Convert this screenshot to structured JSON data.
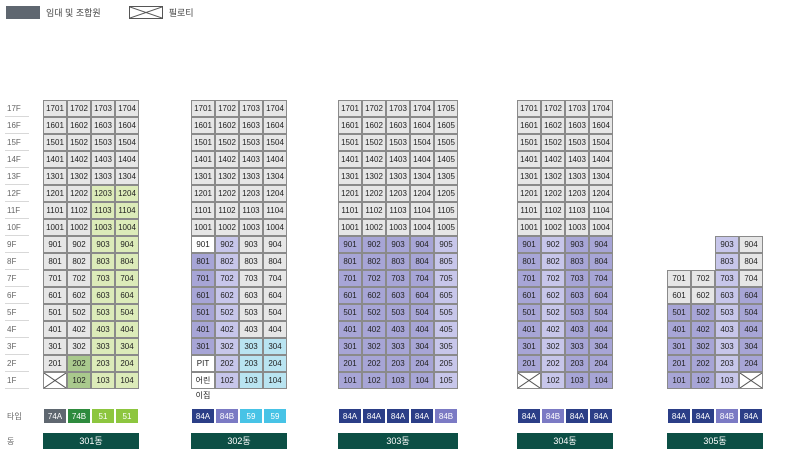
{
  "legend": {
    "dark_label": "임대 및 조합원",
    "x_label": "필로티"
  },
  "floors": [
    "17F",
    "16F",
    "15F",
    "14F",
    "13F",
    "12F",
    "11F",
    "10F",
    "9F",
    "8F",
    "7F",
    "6F",
    "5F",
    "4F",
    "3F",
    "2F",
    "1F"
  ],
  "row_labels": {
    "type": "타입",
    "building": "동"
  },
  "colors": {
    "dark_gray": "#5f6770",
    "dark_green": "#2e8b3e",
    "lime": "#8dc63f",
    "blue_dark": "#2b3e87",
    "purple": "#7b7ac4",
    "cyan": "#47c3e6",
    "building_bar": "#0c4f45"
  },
  "buildings": [
    {
      "name": "301동",
      "top_floor": 17,
      "units": [
        [
          "1701",
          "1702",
          "1703",
          "1704"
        ],
        [
          "1601",
          "1602",
          "1603",
          "1604"
        ],
        [
          "1501",
          "1502",
          "1503",
          "1504"
        ],
        [
          "1401",
          "1402",
          "1403",
          "1404"
        ],
        [
          "1301",
          "1302",
          "1303",
          "1304"
        ],
        [
          "1201",
          "1202",
          "1203",
          "1204"
        ],
        [
          "1101",
          "1102",
          "1103",
          "1104"
        ],
        [
          "1001",
          "1002",
          "1003",
          "1004"
        ],
        [
          "901",
          "902",
          "903",
          "904"
        ],
        [
          "801",
          "802",
          "803",
          "804"
        ],
        [
          "701",
          "702",
          "703",
          "704"
        ],
        [
          "601",
          "602",
          "603",
          "604"
        ],
        [
          "501",
          "502",
          "503",
          "504"
        ],
        [
          "401",
          "402",
          "403",
          "404"
        ],
        [
          "301",
          "302",
          "303",
          "304"
        ],
        [
          "201",
          "202",
          "203",
          "204"
        ],
        [
          "X",
          "102",
          "103",
          "104"
        ]
      ],
      "types": [
        {
          "label": "74A",
          "color": "#5f6770"
        },
        {
          "label": "74B",
          "color": "#2e8b3e"
        },
        {
          "label": "51",
          "color": "#8dc63f"
        },
        {
          "label": "51",
          "color": "#8dc63f"
        }
      ]
    },
    {
      "name": "302동",
      "top_floor": 17,
      "units": [
        [
          "1701",
          "1702",
          "1703",
          "1704"
        ],
        [
          "1601",
          "1602",
          "1603",
          "1604"
        ],
        [
          "1501",
          "1502",
          "1503",
          "1504"
        ],
        [
          "1401",
          "1402",
          "1403",
          "1404"
        ],
        [
          "1301",
          "1302",
          "1303",
          "1304"
        ],
        [
          "1201",
          "1202",
          "1203",
          "1204"
        ],
        [
          "1101",
          "1102",
          "1103",
          "1104"
        ],
        [
          "1001",
          "1002",
          "1003",
          "1004"
        ],
        [
          "901",
          "902",
          "903",
          "904"
        ],
        [
          "801",
          "802",
          "803",
          "804"
        ],
        [
          "701",
          "702",
          "703",
          "704"
        ],
        [
          "601",
          "602",
          "603",
          "604"
        ],
        [
          "501",
          "502",
          "503",
          "504"
        ],
        [
          "401",
          "402",
          "403",
          "404"
        ],
        [
          "301",
          "302",
          "303",
          "304"
        ],
        [
          "PIT",
          "202",
          "203",
          "204"
        ],
        [
          "어린이집",
          "102",
          "103",
          "104"
        ]
      ],
      "types": [
        {
          "label": "84A",
          "color": "#2b3e87"
        },
        {
          "label": "84B",
          "color": "#7b7ac4"
        },
        {
          "label": "59",
          "color": "#47c3e6"
        },
        {
          "label": "59",
          "color": "#47c3e6"
        }
      ]
    },
    {
      "name": "303동",
      "top_floor": 17,
      "units": [
        [
          "1701",
          "1702",
          "1703",
          "1704",
          "1705"
        ],
        [
          "1601",
          "1602",
          "1603",
          "1604",
          "1605"
        ],
        [
          "1501",
          "1502",
          "1503",
          "1504",
          "1505"
        ],
        [
          "1401",
          "1402",
          "1403",
          "1404",
          "1405"
        ],
        [
          "1301",
          "1302",
          "1303",
          "1304",
          "1305"
        ],
        [
          "1201",
          "1202",
          "1203",
          "1204",
          "1205"
        ],
        [
          "1101",
          "1102",
          "1103",
          "1104",
          "1105"
        ],
        [
          "1001",
          "1002",
          "1003",
          "1004",
          "1005"
        ],
        [
          "901",
          "902",
          "903",
          "904",
          "905"
        ],
        [
          "801",
          "802",
          "803",
          "804",
          "805"
        ],
        [
          "701",
          "702",
          "703",
          "704",
          "705"
        ],
        [
          "601",
          "602",
          "603",
          "604",
          "605"
        ],
        [
          "501",
          "502",
          "503",
          "504",
          "505"
        ],
        [
          "401",
          "402",
          "403",
          "404",
          "405"
        ],
        [
          "301",
          "302",
          "303",
          "304",
          "305"
        ],
        [
          "201",
          "202",
          "203",
          "204",
          "205"
        ],
        [
          "101",
          "102",
          "103",
          "104",
          "105"
        ]
      ],
      "types": [
        {
          "label": "84A",
          "color": "#2b3e87"
        },
        {
          "label": "84A",
          "color": "#2b3e87"
        },
        {
          "label": "84A",
          "color": "#2b3e87"
        },
        {
          "label": "84A",
          "color": "#2b3e87"
        },
        {
          "label": "84B",
          "color": "#7b7ac4"
        }
      ]
    },
    {
      "name": "304동",
      "top_floor": 17,
      "units": [
        [
          "1701",
          "1702",
          "1703",
          "1704"
        ],
        [
          "1601",
          "1602",
          "1603",
          "1604"
        ],
        [
          "1501",
          "1502",
          "1503",
          "1504"
        ],
        [
          "1401",
          "1402",
          "1403",
          "1404"
        ],
        [
          "1301",
          "1302",
          "1303",
          "1304"
        ],
        [
          "1201",
          "1202",
          "1203",
          "1204"
        ],
        [
          "1101",
          "1102",
          "1103",
          "1104"
        ],
        [
          "1001",
          "1002",
          "1003",
          "1004"
        ],
        [
          "901",
          "902",
          "903",
          "904"
        ],
        [
          "801",
          "802",
          "803",
          "804"
        ],
        [
          "701",
          "702",
          "703",
          "704"
        ],
        [
          "601",
          "602",
          "603",
          "604"
        ],
        [
          "501",
          "502",
          "503",
          "504"
        ],
        [
          "401",
          "402",
          "403",
          "404"
        ],
        [
          "301",
          "302",
          "303",
          "304"
        ],
        [
          "201",
          "202",
          "203",
          "204"
        ],
        [
          "X",
          "102",
          "103",
          "104"
        ]
      ],
      "types": [
        {
          "label": "84A",
          "color": "#2b3e87"
        },
        {
          "label": "84B",
          "color": "#7b7ac4"
        },
        {
          "label": "84A",
          "color": "#2b3e87"
        },
        {
          "label": "84A",
          "color": "#2b3e87"
        }
      ]
    },
    {
      "name": "305동",
      "top_floor": 9,
      "units": [
        [
          "",
          "",
          "903",
          "904"
        ],
        [
          "",
          "",
          "803",
          "804"
        ],
        [
          "701",
          "702",
          "703",
          "704"
        ],
        [
          "601",
          "602",
          "603",
          "604"
        ],
        [
          "501",
          "502",
          "503",
          "504"
        ],
        [
          "401",
          "402",
          "403",
          "404"
        ],
        [
          "301",
          "302",
          "303",
          "304"
        ],
        [
          "201",
          "202",
          "203",
          "204"
        ],
        [
          "101",
          "102",
          "103",
          "X"
        ]
      ],
      "types": [
        {
          "label": "84A",
          "color": "#2b3e87"
        },
        {
          "label": "84A",
          "color": "#2b3e87"
        },
        {
          "label": "84B",
          "color": "#7b7ac4"
        },
        {
          "label": "84A",
          "color": "#2b3e87"
        }
      ]
    }
  ]
}
